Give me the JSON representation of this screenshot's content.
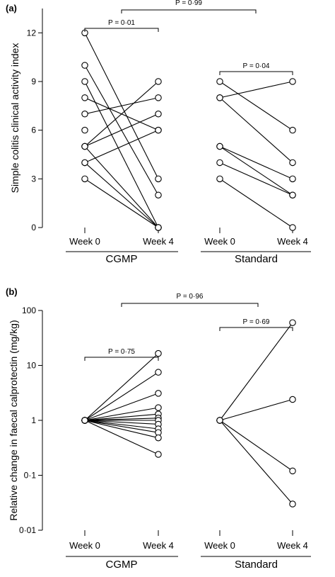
{
  "chart_data": [
    {
      "panel": "(a)",
      "type": "line",
      "scale": "linear",
      "ylabel": "Simple colitis clinical activity index",
      "ylim": [
        0,
        13.5
      ],
      "yticks": [
        {
          "value": 0,
          "label": "0"
        },
        {
          "value": 3,
          "label": "3"
        },
        {
          "value": 6,
          "label": "6"
        },
        {
          "value": 9,
          "label": "9"
        },
        {
          "value": 12,
          "label": "12"
        }
      ],
      "groups": [
        {
          "name": "CGMP",
          "categories": [
            "Week 0",
            "Week 4"
          ],
          "pairs": [
            [
              12,
              3
            ],
            [
              10,
              2
            ],
            [
              9,
              0
            ],
            [
              8,
              6
            ],
            [
              7,
              8
            ],
            [
              5,
              9
            ],
            [
              5,
              7
            ],
            [
              5,
              0
            ],
            [
              4,
              6
            ],
            [
              4,
              0
            ],
            [
              3,
              0
            ]
          ],
          "isolated": [
            [
              6,
              null
            ]
          ],
          "p_label": "P = 0·01"
        },
        {
          "name": "Standard",
          "categories": [
            "Week 0",
            "Week 4"
          ],
          "pairs": [
            [
              9,
              6
            ],
            [
              8,
              9
            ],
            [
              8,
              4
            ],
            [
              5,
              3
            ],
            [
              5,
              2
            ],
            [
              4,
              2
            ],
            [
              3,
              0
            ]
          ],
          "isolated": [],
          "p_label": "P = 0·04"
        }
      ],
      "between_p_label": "P = 0·99"
    },
    {
      "panel": "(b)",
      "type": "line",
      "scale": "log",
      "ylabel": "Relative change in faecal calprotectin (mg/kg)",
      "ylim": [
        0.01,
        100
      ],
      "yticks": [
        {
          "value": 0.01,
          "label": "0·01"
        },
        {
          "value": 0.1,
          "label": "0·1"
        },
        {
          "value": 1,
          "label": "1"
        },
        {
          "value": 10,
          "label": "10"
        },
        {
          "value": 100,
          "label": "100"
        }
      ],
      "groups": [
        {
          "name": "CGMP",
          "categories": [
            "Week 0",
            "Week 4"
          ],
          "pairs": [
            [
              1,
              16.5
            ],
            [
              1,
              7.5
            ],
            [
              1,
              3.1
            ],
            [
              1,
              1.7
            ],
            [
              1,
              1.3
            ],
            [
              1,
              1.1
            ],
            [
              1,
              1.0
            ],
            [
              1,
              0.85
            ],
            [
              1,
              0.7
            ],
            [
              1,
              0.6
            ],
            [
              1,
              0.48
            ],
            [
              1,
              0.24
            ]
          ],
          "isolated": [],
          "p_label": "P = 0·75"
        },
        {
          "name": "Standard",
          "categories": [
            "Week 0",
            "Week 4"
          ],
          "pairs": [
            [
              1,
              60
            ],
            [
              1,
              2.4
            ],
            [
              1,
              0.12
            ],
            [
              1,
              0.03
            ]
          ],
          "isolated": [],
          "p_label": "P = 0·69"
        }
      ],
      "between_p_label": "P = 0·96"
    }
  ]
}
